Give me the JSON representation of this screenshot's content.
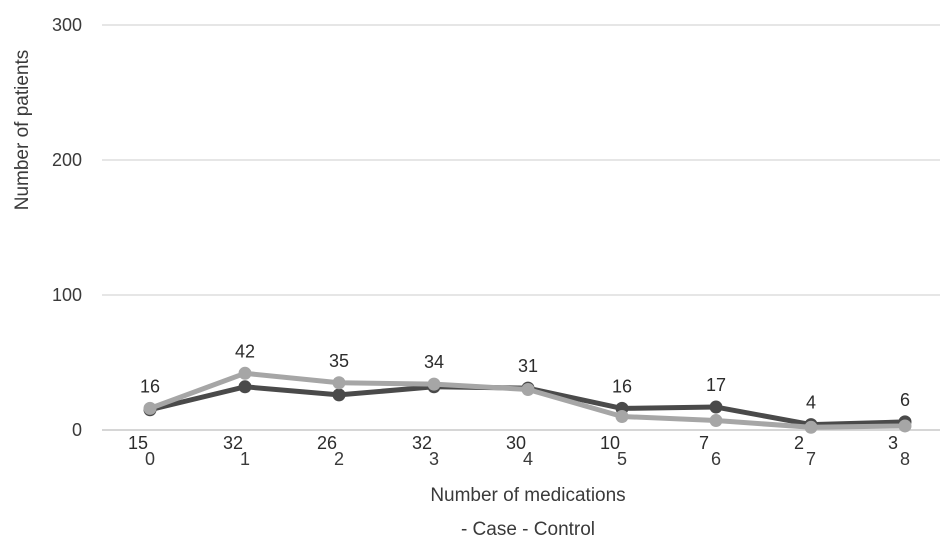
{
  "chart_data": {
    "type": "line",
    "title": "",
    "xlabel": "Number of medications",
    "ylabel": "Number of patients",
    "x": [
      "0",
      "1",
      "2",
      "3",
      "4",
      "5",
      "6",
      "7",
      "8"
    ],
    "ylim": [
      0,
      300
    ],
    "yticks": [
      "0",
      "100",
      "200",
      "300"
    ],
    "grid": true,
    "legend_text": "- Case - Control",
    "legend_position": "bottom",
    "series": [
      {
        "name": "Case",
        "color": "#4a4a4a",
        "values": [
          15,
          32,
          26,
          32,
          31,
          16,
          17,
          4,
          6
        ]
      },
      {
        "name": "Control",
        "color": "#a6a6a6",
        "values": [
          16,
          42,
          35,
          34,
          30,
          10,
          7,
          2,
          3
        ]
      }
    ]
  }
}
